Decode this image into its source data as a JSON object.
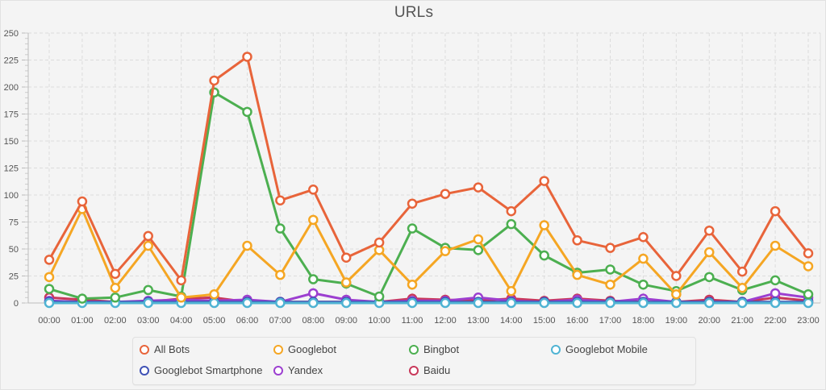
{
  "chart_data": {
    "type": "line",
    "title": "URLs",
    "xlabel": "",
    "ylabel": "",
    "ylim": [
      0,
      250
    ],
    "yticks": [
      0,
      25,
      50,
      75,
      100,
      125,
      150,
      175,
      200,
      225,
      250
    ],
    "grid": true,
    "legend_position": "bottom",
    "categories": [
      "00:00",
      "01:00",
      "02:00",
      "03:00",
      "04:00",
      "05:00",
      "06:00",
      "07:00",
      "08:00",
      "09:00",
      "10:00",
      "11:00",
      "12:00",
      "13:00",
      "14:00",
      "15:00",
      "16:00",
      "17:00",
      "18:00",
      "19:00",
      "20:00",
      "21:00",
      "22:00",
      "23:00"
    ],
    "series": [
      {
        "name": "All Bots",
        "color": "#e8643a",
        "values": [
          40,
          94,
          27,
          62,
          21,
          206,
          228,
          95,
          105,
          42,
          56,
          92,
          101,
          107,
          85,
          113,
          58,
          51,
          61,
          25,
          67,
          29,
          85,
          46
        ]
      },
      {
        "name": "Googlebot",
        "color": "#f5a623",
        "values": [
          24,
          87,
          14,
          53,
          5,
          8,
          53,
          26,
          77,
          19,
          49,
          17,
          48,
          59,
          11,
          72,
          26,
          17,
          41,
          8,
          47,
          14,
          53,
          34
        ]
      },
      {
        "name": "Bingbot",
        "color": "#4caf50",
        "values": [
          13,
          4,
          5,
          12,
          6,
          195,
          177,
          69,
          22,
          18,
          6,
          69,
          51,
          49,
          73,
          44,
          28,
          31,
          17,
          11,
          24,
          12,
          21,
          8
        ]
      },
      {
        "name": "Googlebot Mobile",
        "color": "#4fb3d3",
        "values": [
          0,
          0,
          0,
          0,
          0,
          0,
          0,
          0,
          0,
          0,
          0,
          0,
          0,
          0,
          0,
          0,
          0,
          0,
          0,
          0,
          0,
          0,
          0,
          0
        ]
      },
      {
        "name": "Googlebot Smartphone",
        "color": "#3f51b5",
        "values": [
          1,
          1,
          1,
          1,
          1,
          1,
          1,
          1,
          1,
          1,
          1,
          1,
          1,
          1,
          1,
          1,
          1,
          1,
          1,
          1,
          1,
          1,
          1,
          1
        ]
      },
      {
        "name": "Yandex",
        "color": "#9c3fd0",
        "values": [
          2,
          1,
          1,
          2,
          3,
          2,
          3,
          1,
          9,
          3,
          1,
          2,
          2,
          5,
          2,
          1,
          3,
          1,
          4,
          1,
          1,
          1,
          9,
          5
        ]
      },
      {
        "name": "Baidu",
        "color": "#c8385a",
        "values": [
          5,
          3,
          1,
          1,
          4,
          5,
          1,
          1,
          1,
          1,
          1,
          4,
          3,
          2,
          4,
          2,
          4,
          2,
          1,
          1,
          3,
          1,
          5,
          2
        ]
      }
    ]
  },
  "legend": {
    "items": [
      {
        "label": "All Bots",
        "color": "#e8643a"
      },
      {
        "label": "Googlebot",
        "color": "#f5a623"
      },
      {
        "label": "Bingbot",
        "color": "#4caf50"
      },
      {
        "label": "Googlebot Mobile",
        "color": "#4fb3d3"
      },
      {
        "label": "Googlebot Smartphone",
        "color": "#3f51b5"
      },
      {
        "label": "Yandex",
        "color": "#9c3fd0"
      },
      {
        "label": "Baidu",
        "color": "#c8385a"
      }
    ]
  }
}
